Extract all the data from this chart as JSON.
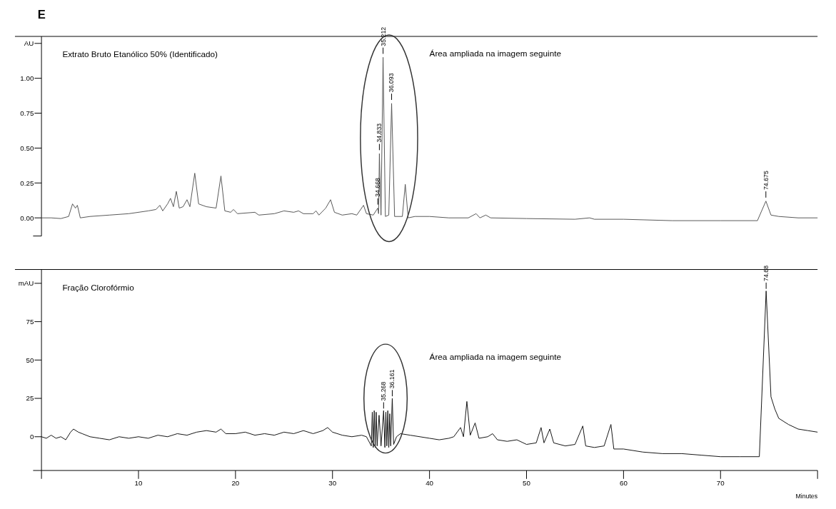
{
  "chart_data": [
    {
      "type": "line",
      "title": "Extrato Bruto Etanólico 50% (Identificado)",
      "tick_labels": "y",
      "grid": false,
      "marker": "none",
      "line_style": "solid",
      "xlim": [
        0,
        80
      ],
      "ylim": [
        -0.13,
        1.3
      ],
      "yticks": [
        {
          "value": 0,
          "label": "0.00"
        },
        {
          "value": 0.25,
          "label": "0.25"
        },
        {
          "value": 0.5,
          "label": "0.50"
        },
        {
          "value": 0.75,
          "label": "0.75"
        },
        {
          "value": 1,
          "label": "1.00"
        },
        {
          "value": 1.25,
          "label": "AU"
        }
      ],
      "annotations": [
        "E",
        "Área ampliada na imagem seguinte",
        {
          "text": "34.668",
          "x": 34.668,
          "y": 0.08
        },
        {
          "text": "34.833",
          "x": 34.833,
          "y": 0.47
        },
        {
          "text": "35.212",
          "x": 35.212,
          "y": 1.16
        },
        {
          "text": "36.093",
          "x": 36.093,
          "y": 0.83
        },
        {
          "text": "74.675",
          "x": 74.675,
          "y": 0.13
        }
      ],
      "series": [
        {
          "color": "#555555",
          "x": [
            0,
            1,
            2,
            2.8,
            3.2,
            3.5,
            3.7,
            4,
            5,
            7,
            9,
            11,
            11.8,
            12.2,
            12.5,
            13,
            13.3,
            13.6,
            13.9,
            14.2,
            14.6,
            15,
            15.3,
            15.8,
            16.2,
            17,
            18,
            18.5,
            18.9,
            19.5,
            19.8,
            20.2,
            22,
            22.4,
            24,
            25,
            26,
            26.5,
            27,
            28,
            28.3,
            28.6,
            29.3,
            29.8,
            30.2,
            31,
            32,
            32.5,
            33.2,
            33.5,
            34.2,
            34.668,
            34.75,
            34.833,
            35,
            35.212,
            35.45,
            35.8,
            36.093,
            36.4,
            37.2,
            37.5,
            37.8,
            38.5,
            40,
            42,
            44,
            44.8,
            45.2,
            45.8,
            46.3,
            50,
            55,
            56.5,
            57,
            60,
            65,
            70,
            73.8,
            74.675,
            75.2,
            76,
            78,
            80
          ],
          "values": [
            0,
            0,
            -0.005,
            0.01,
            0.1,
            0.07,
            0.09,
            0,
            0.01,
            0.02,
            0.03,
            0.05,
            0.06,
            0.09,
            0.05,
            0.1,
            0.14,
            0.08,
            0.19,
            0.07,
            0.08,
            0.13,
            0.08,
            0.32,
            0.1,
            0.08,
            0.07,
            0.3,
            0.05,
            0.04,
            0.06,
            0.03,
            0.04,
            0.02,
            0.03,
            0.05,
            0.04,
            0.05,
            0.03,
            0.03,
            0.05,
            0.02,
            0.07,
            0.13,
            0.04,
            0.02,
            0.03,
            0.02,
            0.09,
            0.03,
            0.02,
            0.07,
            0.03,
            0.46,
            0.02,
            1.15,
            0.01,
            0.02,
            0.82,
            0.01,
            0.01,
            0.24,
            0,
            0.01,
            0.01,
            0,
            0,
            0.03,
            0,
            0.02,
            0,
            -0.005,
            -0.01,
            0,
            -0.01,
            -0.01,
            -0.02,
            -0.02,
            -0.02,
            0.12,
            0.02,
            0.01,
            0,
            0
          ]
        }
      ]
    },
    {
      "type": "line",
      "title": "Fração Clorofórmio",
      "xlabel": "Minutes",
      "grid": false,
      "marker": "none",
      "line_style": "solid",
      "xlim": [
        0,
        80
      ],
      "xticks": [
        10,
        20,
        30,
        40,
        50,
        60,
        70
      ],
      "ylim": [
        -22,
        109
      ],
      "yticks": [
        0,
        25,
        50,
        75,
        {
          "value": 100,
          "label": "mAU"
        }
      ],
      "annotations": [
        "Área ampliada na imagem seguinte",
        {
          "text": "35.268",
          "x": 35.268,
          "y": 17
        },
        {
          "text": "36.161",
          "x": 36.161,
          "y": 25
        },
        {
          "text": "74.68",
          "x": 74.7,
          "y": 95
        }
      ],
      "series": [
        {
          "color": "#111111",
          "x": [
            0,
            0.5,
            1,
            1.5,
            2,
            2.5,
            3,
            3.3,
            3.8,
            4.2,
            5,
            6,
            7,
            8,
            9,
            10,
            11,
            12,
            13,
            14,
            15,
            16,
            17,
            18,
            18.5,
            19,
            20,
            21,
            22,
            23,
            24,
            25,
            26,
            27,
            28,
            29,
            29.5,
            30,
            31,
            32,
            33,
            33.5,
            34,
            34.1,
            34.2,
            34.3,
            34.4,
            34.5,
            34.6,
            34.8,
            35,
            35.268,
            35.4,
            35.5,
            35.6,
            35.7,
            35.8,
            35.9,
            36,
            36.161,
            36.3,
            36.6,
            37,
            38,
            39,
            40,
            41,
            42,
            42.5,
            43.2,
            43.5,
            43.85,
            44.2,
            44.7,
            45.1,
            46,
            46.5,
            47,
            48,
            49,
            50,
            51,
            51.5,
            51.8,
            52.4,
            52.8,
            54,
            55,
            55.8,
            56.1,
            57,
            58,
            58.7,
            59,
            60,
            61,
            62,
            64,
            66,
            68,
            70,
            72,
            74,
            74.7,
            75.2,
            75.6,
            76,
            77,
            78,
            79,
            80
          ],
          "values": [
            0,
            -1,
            1,
            -1,
            0,
            -2,
            3,
            5,
            3,
            2,
            0,
            -1,
            -2,
            0,
            -1,
            0,
            -1,
            1,
            0,
            2,
            1,
            3,
            4,
            3,
            5,
            2,
            2,
            3,
            1,
            2,
            1,
            3,
            2,
            4,
            2,
            4,
            6,
            3,
            1,
            0,
            1,
            0,
            -6,
            16,
            -7,
            17,
            -7,
            16,
            -6,
            14,
            -6,
            17,
            -7,
            16,
            -6,
            17,
            -7,
            15,
            -6,
            25,
            -5,
            0,
            2,
            1,
            0,
            -1,
            -2,
            -1,
            0,
            6,
            0,
            23,
            1,
            9,
            -1,
            0,
            2,
            -2,
            -3,
            -2,
            -5,
            -4,
            6,
            -4,
            5,
            -4,
            -6,
            -5,
            7,
            -6,
            -7,
            -6,
            8,
            -8,
            -8,
            -9,
            -10,
            -11,
            -11,
            -12,
            -13,
            -13,
            -13,
            95,
            26,
            18,
            12,
            8,
            5,
            4,
            3
          ]
        }
      ]
    }
  ]
}
